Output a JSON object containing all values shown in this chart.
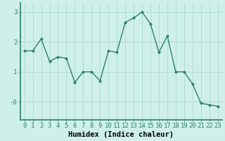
{
  "x": [
    0,
    1,
    2,
    3,
    4,
    5,
    6,
    7,
    8,
    9,
    10,
    11,
    12,
    13,
    14,
    15,
    16,
    17,
    18,
    19,
    20,
    21,
    22,
    23
  ],
  "y": [
    1.7,
    1.7,
    2.1,
    1.35,
    1.5,
    1.45,
    0.65,
    1.0,
    1.0,
    0.7,
    1.7,
    1.65,
    2.65,
    2.8,
    3.0,
    2.6,
    1.65,
    2.2,
    1.0,
    1.0,
    0.6,
    -0.05,
    -0.1,
    -0.15
  ],
  "line_color": "#2e7f6e",
  "marker": "D",
  "markersize": 2.0,
  "linewidth": 1.0,
  "xlabel": "Humidex (Indice chaleur)",
  "ylabel": "",
  "xlim": [
    -0.5,
    23.5
  ],
  "ylim": [
    -0.6,
    3.3
  ],
  "yticks": [
    0,
    1,
    2,
    3
  ],
  "ytick_labels": [
    "-0",
    "1",
    "2",
    "3"
  ],
  "xticks": [
    0,
    1,
    2,
    3,
    4,
    5,
    6,
    7,
    8,
    9,
    10,
    11,
    12,
    13,
    14,
    15,
    16,
    17,
    18,
    19,
    20,
    21,
    22,
    23
  ],
  "background_color": "#cff0ea",
  "grid_color": "#aad9d1",
  "tick_fontsize": 6.5,
  "label_fontsize": 7.5
}
